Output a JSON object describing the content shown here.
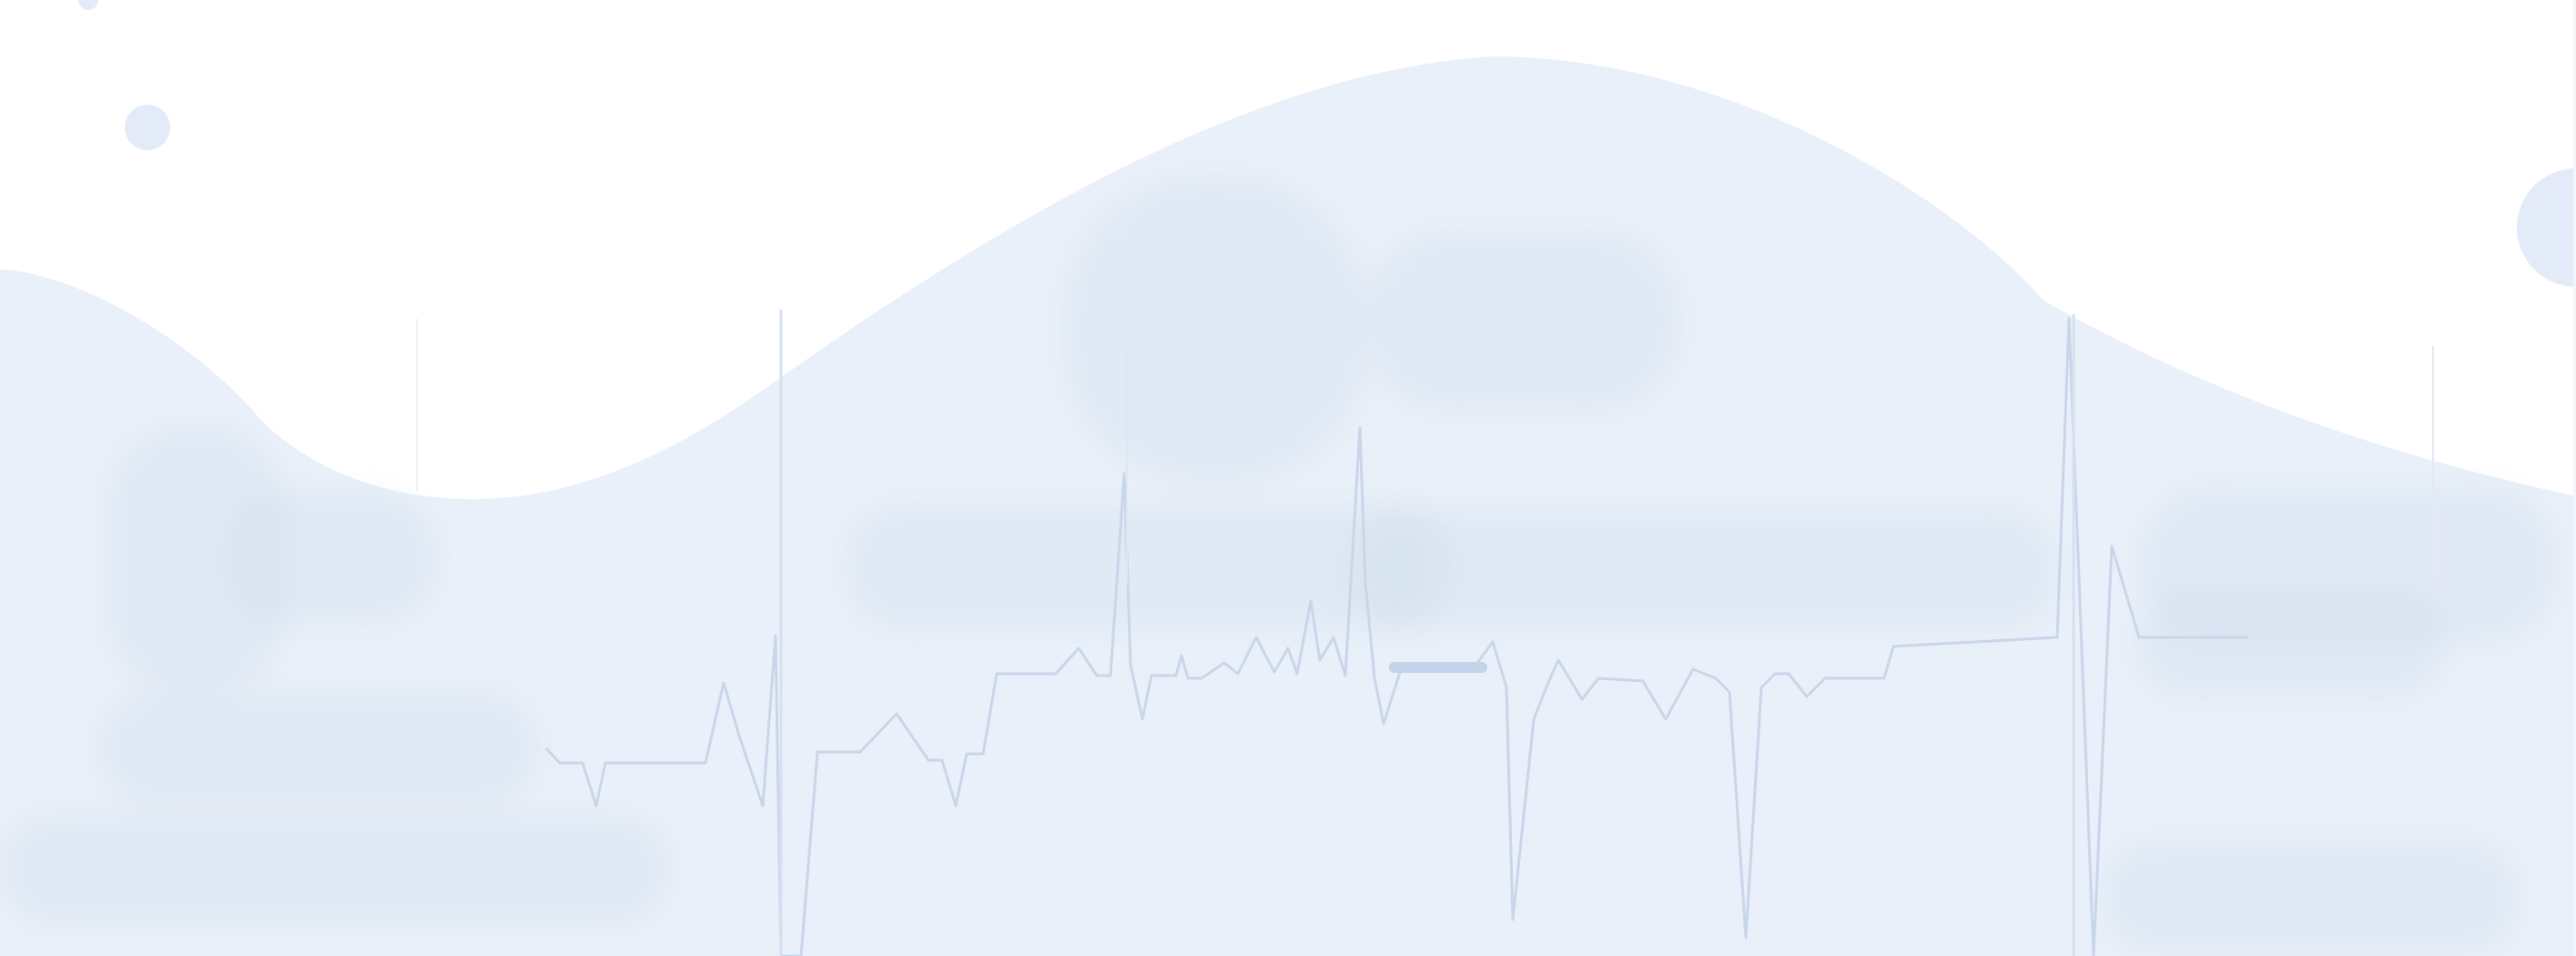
{
  "illustration": {
    "colors": {
      "background": "#ffffff",
      "wave_fill": "#e9f0f9",
      "dot_fill": "#e3ebf8",
      "pulse_line": "#c5d3e8",
      "spike_line": "#d4dff0",
      "blur_blob": "#dbe3ee"
    },
    "elements": [
      "background-wave",
      "heartbeat-line",
      "decorative-dots",
      "blurred-placeholders"
    ]
  }
}
